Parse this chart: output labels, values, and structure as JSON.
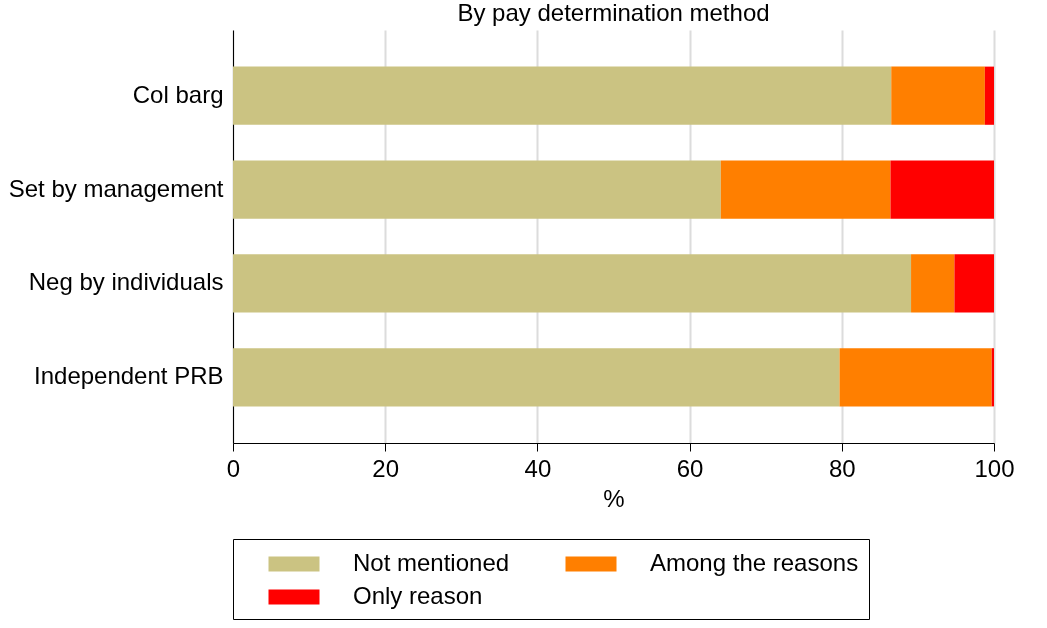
{
  "chart_data": {
    "type": "bar",
    "orientation": "horizontal",
    "stacked": true,
    "title": "By pay determination method",
    "xlabel": "%",
    "categories": [
      "Col barg",
      "Set by management",
      "Neg by individuals",
      "Independent PRB"
    ],
    "series": [
      {
        "name": "Not mentioned",
        "color": "#cbc382",
        "values": [
          86.5,
          64.1,
          89.1,
          79.7
        ]
      },
      {
        "name": "Among the reasons",
        "color": "#ff7f00",
        "values": [
          12.3,
          22.3,
          5.7,
          20.0
        ]
      },
      {
        "name": "Only reason",
        "color": "#ff0000",
        "values": [
          1.2,
          13.6,
          5.2,
          0.3
        ]
      }
    ],
    "xlim": [
      0,
      100
    ],
    "xticks": [
      0,
      20,
      40,
      60,
      80,
      100
    ],
    "grid": "x",
    "legend": "bottom"
  }
}
